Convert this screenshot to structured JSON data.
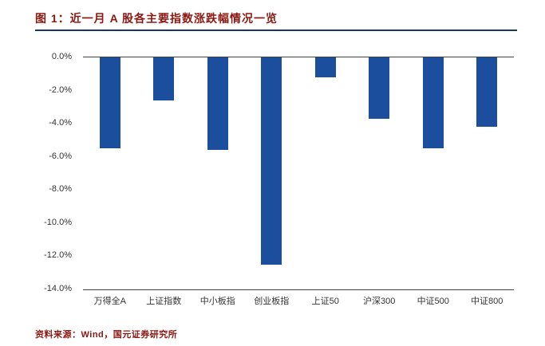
{
  "header": {
    "title": "图 1：近一月 A 股各主要指数涨跌幅情况一览"
  },
  "footer": {
    "source": "资料来源：Wind，国元证券研究所"
  },
  "colors": {
    "title": "#8C1711",
    "rule": "#17375E",
    "bar": "#1C4E9E",
    "axis_line": "#404040",
    "tick_text": "#333333"
  },
  "chart_data": {
    "type": "bar",
    "title": "近一月 A 股各主要指数涨跌幅情况一览",
    "categories": [
      "万得全A",
      "上证指数",
      "中小板指",
      "创业板指",
      "上证50",
      "沪深300",
      "中证500",
      "中证800"
    ],
    "values": [
      -5.5,
      -2.6,
      -5.6,
      -12.5,
      -1.2,
      -3.7,
      -5.5,
      -4.2
    ],
    "unit": "%",
    "xlabel": "",
    "ylabel": "",
    "ylim": [
      -14,
      0
    ],
    "ytick_labels": [
      "0.0%",
      "-2.0%",
      "-4.0%",
      "-6.0%",
      "-8.0%",
      "-10.0%",
      "-12.0%",
      "-14.0%"
    ],
    "grid": false,
    "legend": false,
    "bar_color": "#1C4E9E"
  }
}
